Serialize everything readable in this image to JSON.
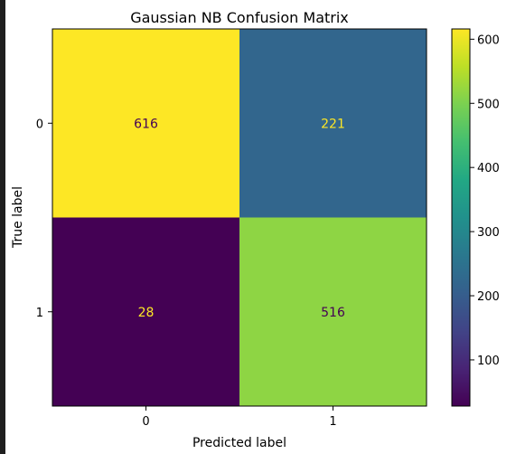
{
  "chart_data": {
    "type": "heatmap",
    "title": "Gaussian NB Confusion Matrix",
    "xlabel": "Predicted label",
    "ylabel": "True label",
    "x_categories": [
      "0",
      "1"
    ],
    "y_categories": [
      "0",
      "1"
    ],
    "matrix": [
      [
        616,
        221
      ],
      [
        28,
        516
      ]
    ],
    "colormap": "viridis",
    "colorbar": {
      "range": [
        28,
        616
      ],
      "ticks": [
        100,
        200,
        300,
        400,
        500,
        600
      ],
      "tick_labels": [
        "100",
        "200",
        "300",
        "400",
        "500",
        "600"
      ]
    },
    "cell_text_colors": {
      "on_dark": "#fde725",
      "on_light": "#440154"
    },
    "grid": false
  }
}
